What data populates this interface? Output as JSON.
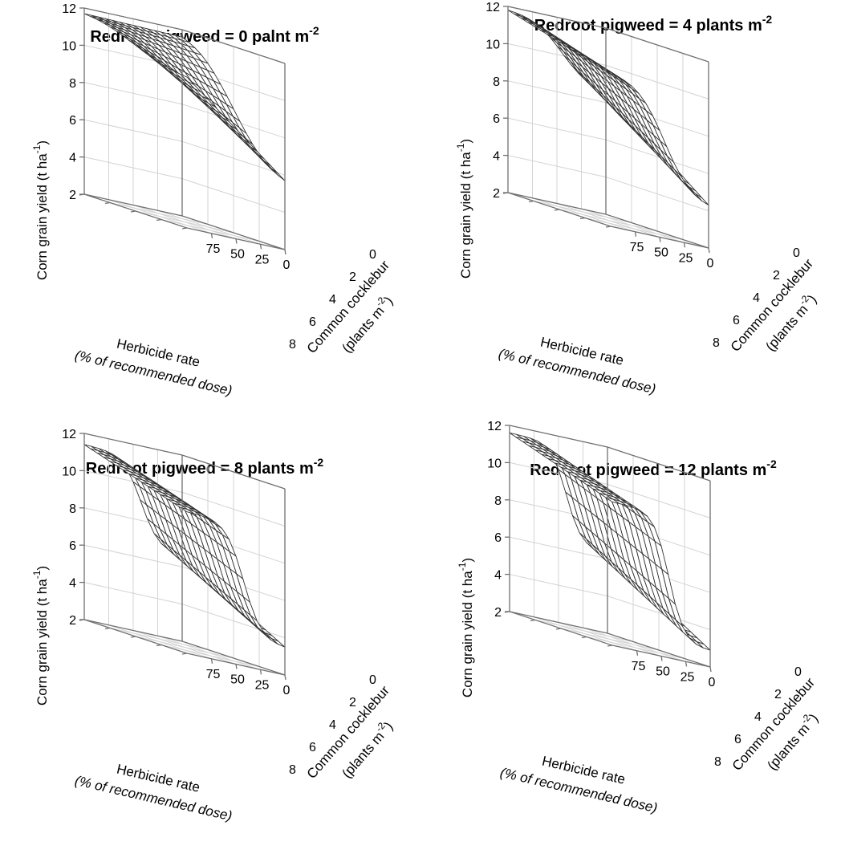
{
  "chart_data": [
    {
      "type": "surface",
      "title": "Redroot pigweed = 0 palnt m",
      "title_sup": "-2",
      "pigweed_density": 0,
      "zlabel": "Corn grain yield (t ha",
      "zlabel_sup": "-1",
      "zlabel_end": ")",
      "xlabel_line1": "Herbicide rate",
      "xlabel_line2": "(% of recommended dose)",
      "ylabel_line1": "Common cocklebur",
      "ylabel_line2": "(plants m",
      "ylabel_sup": "-2",
      "ylabel_end": ")",
      "x_ticks": [
        "75",
        "50",
        "25",
        "0"
      ],
      "y_ticks": [
        "0",
        "2",
        "4",
        "6",
        "8"
      ],
      "z_ticks": [
        "2",
        "4",
        "6",
        "8",
        "10",
        "12"
      ],
      "xlim": [
        0,
        100
      ],
      "ylim": [
        0,
        8
      ],
      "zlim": [
        2,
        12
      ],
      "corner_yield": {
        "herbicide_100_cocklebur_0": 11.7,
        "herbicide_100_cocklebur_8": 10.1,
        "herbicide_0_cocklebur_0": 11.6,
        "herbicide_0_cocklebur_8": 5.7
      },
      "grid_lines": true
    },
    {
      "type": "surface",
      "title": "Redroot pigweed = 4 plants m",
      "title_sup": "-2",
      "pigweed_density": 4,
      "zlabel": "Corn grain yield (t ha",
      "zlabel_sup": "-1",
      "zlabel_end": ")",
      "xlabel_line1": "Herbicide rate",
      "xlabel_line2": "(% of recommended dose)",
      "ylabel_line1": "Common cocklebur",
      "ylabel_line2": "(plants m",
      "ylabel_sup": "-2",
      "ylabel_end": ")",
      "x_ticks": [
        "75",
        "50",
        "25",
        "0"
      ],
      "y_ticks": [
        "0",
        "2",
        "4",
        "6",
        "8"
      ],
      "z_ticks": [
        "2",
        "4",
        "6",
        "8",
        "10",
        "12"
      ],
      "xlim": [
        0,
        100
      ],
      "ylim": [
        0,
        8
      ],
      "zlim": [
        2,
        12
      ],
      "corner_yield": {
        "herbicide_100_cocklebur_0": 11.8,
        "herbicide_100_cocklebur_8": 10.2,
        "herbicide_0_cocklebur_0": 8.6,
        "herbicide_0_cocklebur_8": 4.3
      },
      "grid_lines": true
    },
    {
      "type": "surface",
      "title": "Redroot pigweed = 8 plants m",
      "title_sup": "-2",
      "pigweed_density": 8,
      "zlabel": "Corn grain yield (t ha",
      "zlabel_sup": "-1",
      "zlabel_end": ")",
      "xlabel_line1": "Herbicide rate",
      "xlabel_line2": "(% of recommended dose)",
      "ylabel_line1": "Common cocklebur",
      "ylabel_line2": "(plants m",
      "ylabel_sup": "-2",
      "ylabel_end": ")",
      "x_ticks": [
        "75",
        "50",
        "25",
        "0"
      ],
      "y_ticks": [
        "0",
        "2",
        "4",
        "6",
        "8"
      ],
      "z_ticks": [
        "2",
        "4",
        "6",
        "8",
        "10",
        "12"
      ],
      "xlim": [
        0,
        100
      ],
      "ylim": [
        0,
        8
      ],
      "zlim": [
        2,
        12
      ],
      "corner_yield": {
        "herbicide_100_cocklebur_0": 11.4,
        "herbicide_100_cocklebur_8": 9.6,
        "herbicide_0_cocklebur_0": 6.6,
        "herbicide_0_cocklebur_8": 3.5
      },
      "grid_lines": true
    },
    {
      "type": "surface",
      "title": "Redroot pigweed = 12 plants m",
      "title_sup": "-2",
      "pigweed_density": 12,
      "zlabel": "Corn grain yield (t ha",
      "zlabel_sup": "-1",
      "zlabel_end": ")",
      "xlabel_line1": "Herbicide rate",
      "xlabel_line2": "(% of recommended dose)",
      "ylabel_line1": "Common cocklebur",
      "ylabel_line2": "(plants m",
      "ylabel_sup": "-2",
      "ylabel_end": ")",
      "x_ticks": [
        "75",
        "50",
        "25",
        "0"
      ],
      "y_ticks": [
        "0",
        "2",
        "4",
        "6",
        "8"
      ],
      "z_ticks": [
        "2",
        "4",
        "6",
        "8",
        "10",
        "12"
      ],
      "xlim": [
        0,
        100
      ],
      "ylim": [
        0,
        8
      ],
      "zlim": [
        2,
        12
      ],
      "corner_yield": {
        "herbicide_100_cocklebur_0": 11.6,
        "herbicide_100_cocklebur_8": 9.7,
        "herbicide_0_cocklebur_0": 6.3,
        "herbicide_0_cocklebur_8": 2.9
      },
      "grid_lines": true
    }
  ],
  "colors": {
    "mesh": "#333333",
    "frame": "#707070",
    "grid": "#d3d3d3",
    "background": "#ffffff"
  }
}
